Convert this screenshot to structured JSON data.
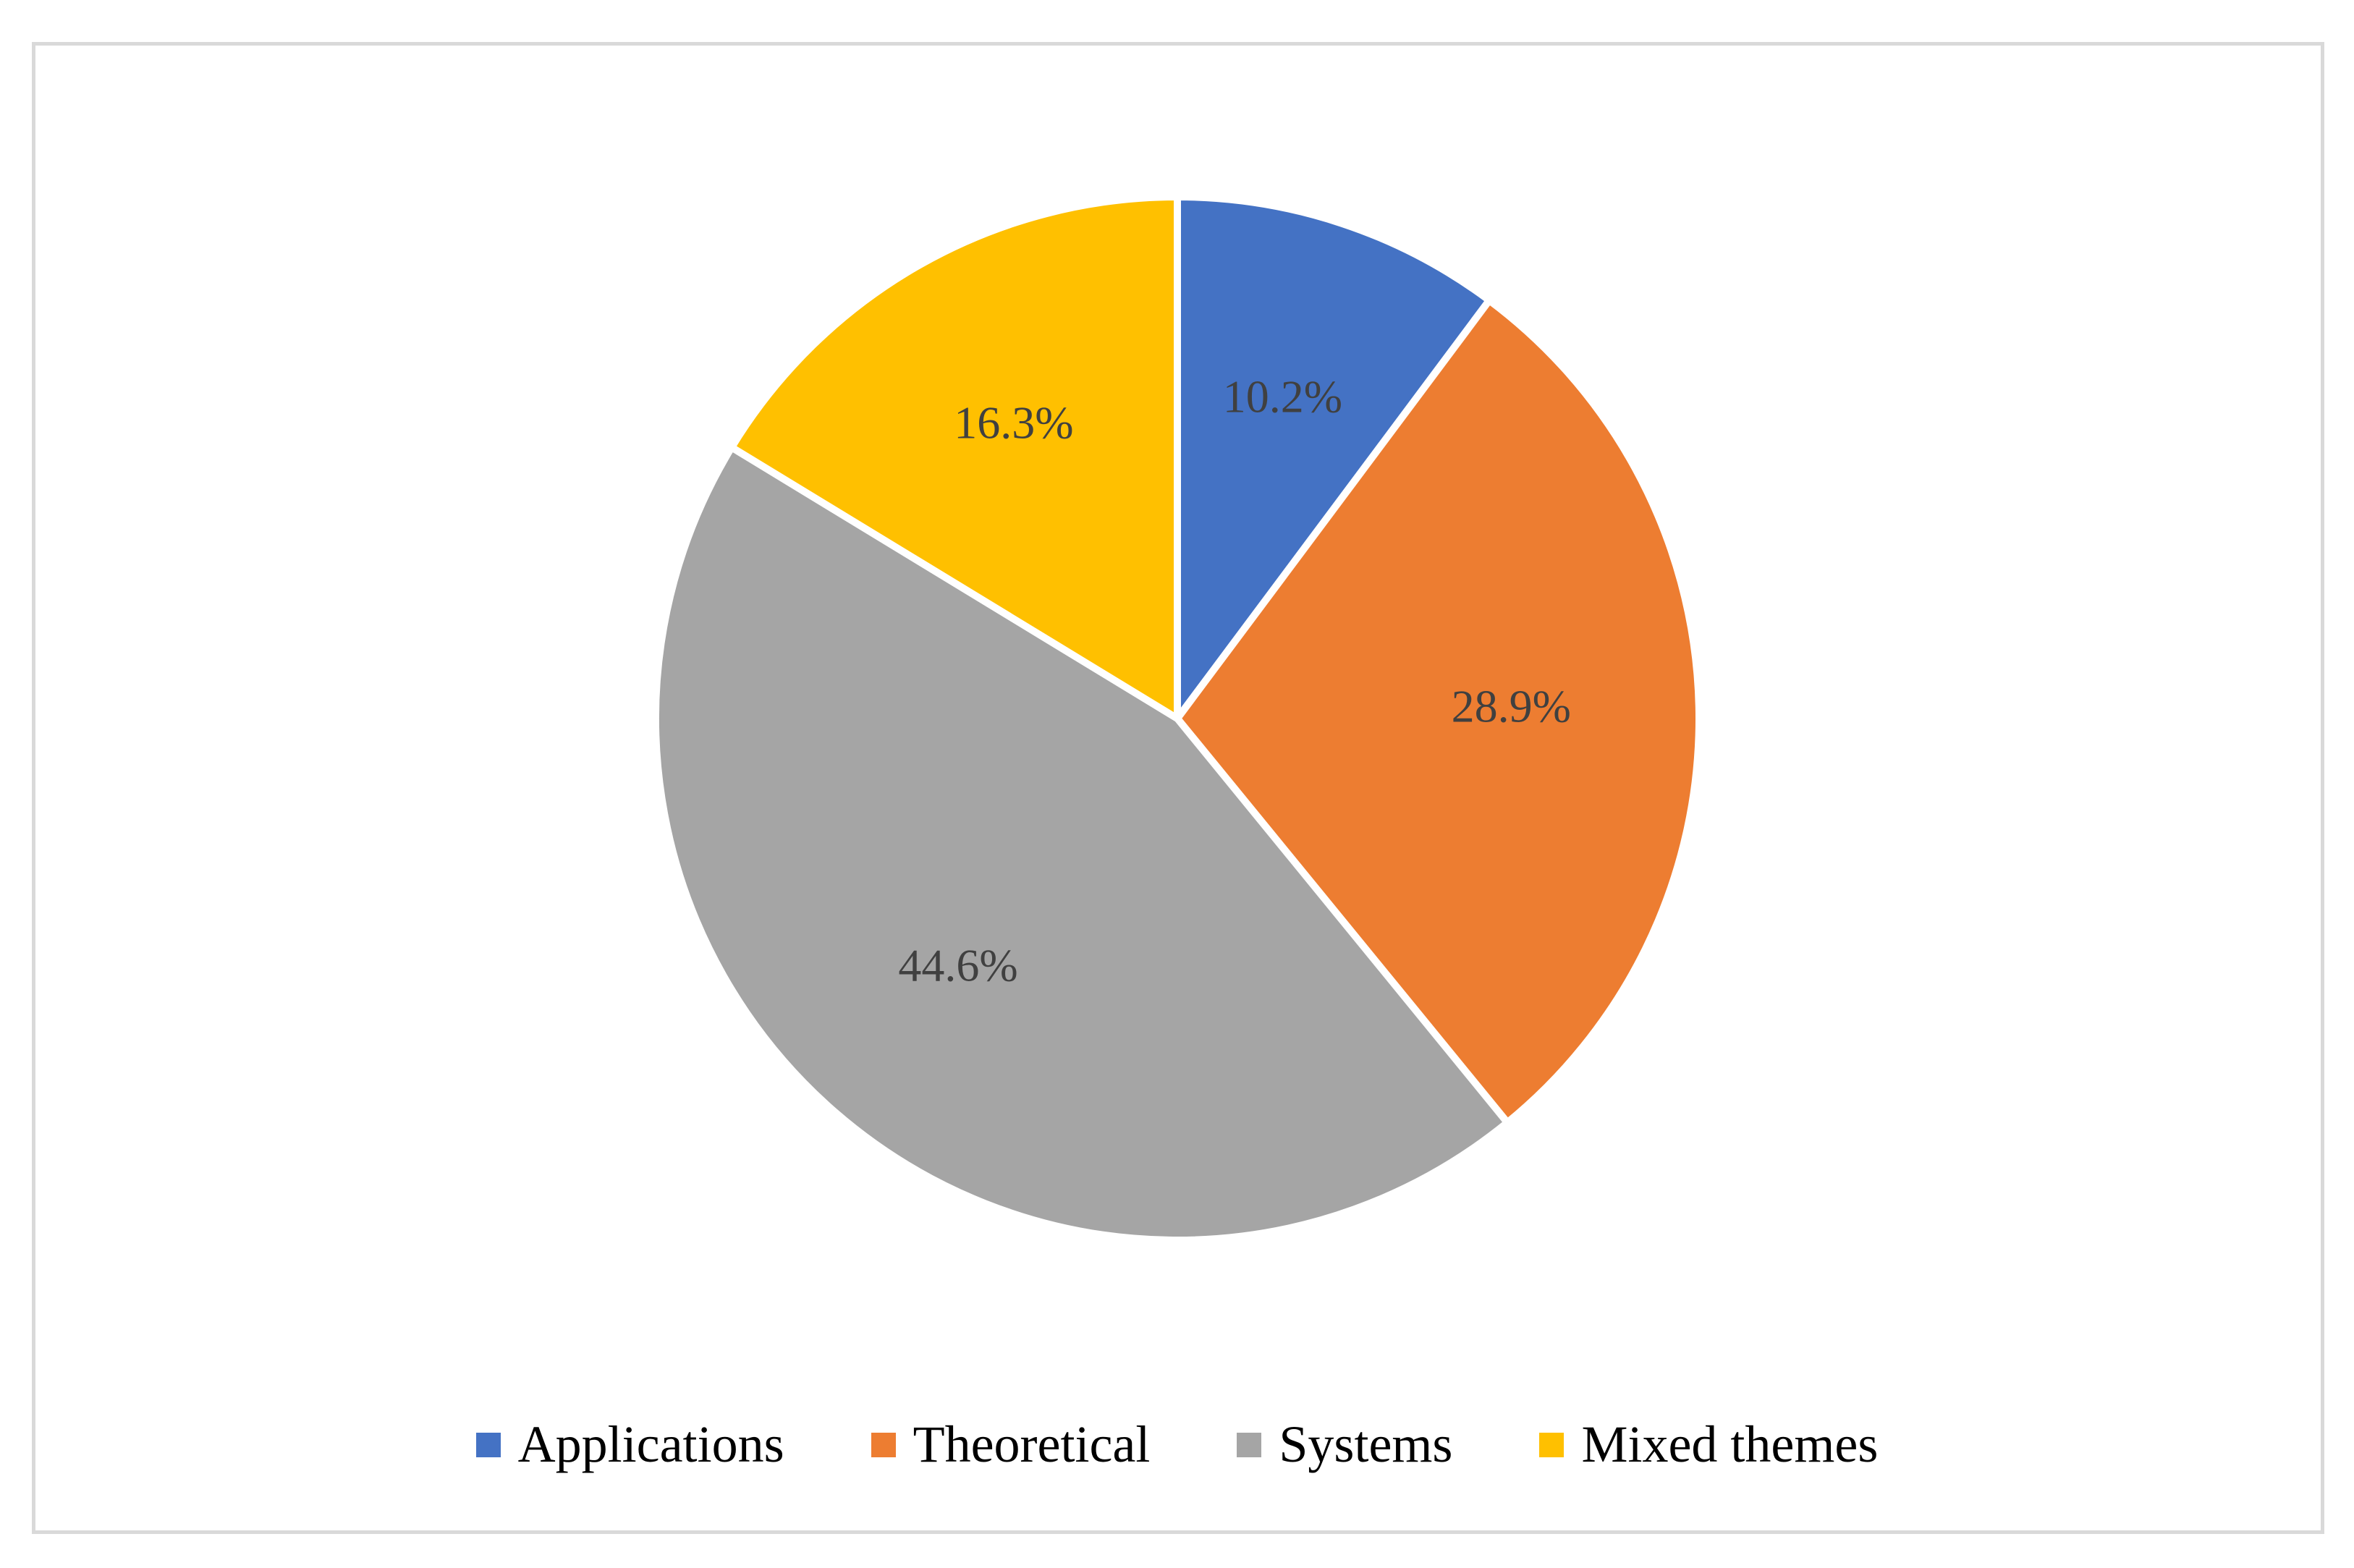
{
  "chart_data": {
    "type": "pie",
    "title": "",
    "categories": [
      "Applications",
      "Theoretical",
      "Systems",
      "Mixed themes"
    ],
    "values": [
      10.2,
      28.9,
      44.6,
      16.3
    ],
    "labels": [
      "10.2%",
      "28.9%",
      "44.6%",
      "16.3%"
    ],
    "colors": [
      "#4472C4",
      "#ED7D31",
      "#A5A5A5",
      "#FFC000"
    ],
    "legend_position": "bottom"
  }
}
